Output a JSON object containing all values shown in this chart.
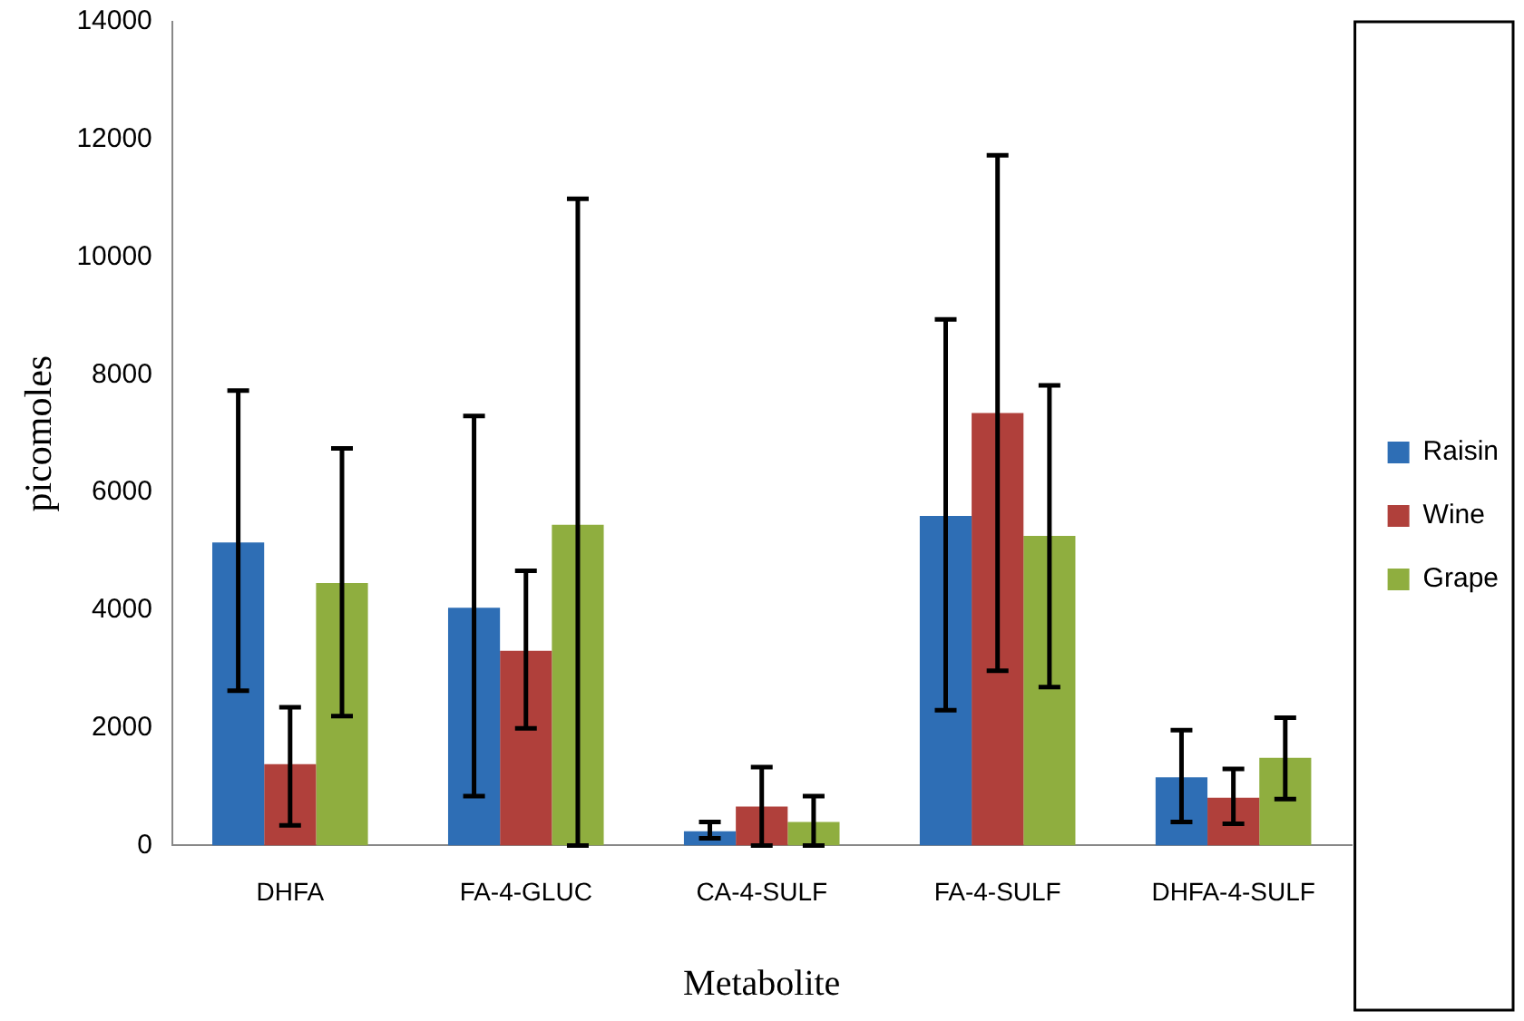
{
  "chart_data": {
    "type": "bar",
    "xlabel": "Metabolite",
    "ylabel": "picomoles",
    "categories": [
      "DHFA",
      "FA-4-GLUC",
      "CA-4-SULF",
      "FA-4-SULF",
      "DHFA-4-SULF"
    ],
    "series": [
      {
        "name": "Raisin",
        "color": "#2e6eb5",
        "values": [
          5150,
          4040,
          240,
          5600,
          1160
        ],
        "errors": [
          [
            2630,
            7730
          ],
          [
            840,
            7300
          ],
          [
            120,
            400
          ],
          [
            2300,
            8940
          ],
          [
            400,
            1960
          ]
        ]
      },
      {
        "name": "Wine",
        "color": "#b0403b",
        "values": [
          1380,
          3310,
          660,
          7350,
          810
        ],
        "errors": [
          [
            340,
            2350
          ],
          [
            1990,
            4670
          ],
          [
            0,
            1330
          ],
          [
            2970,
            11730
          ],
          [
            370,
            1300
          ]
        ]
      },
      {
        "name": "Grape",
        "color": "#8fae3f",
        "values": [
          4460,
          5450,
          400,
          5260,
          1490
        ],
        "errors": [
          [
            2200,
            6750
          ],
          [
            0,
            10990
          ],
          [
            0,
            840
          ],
          [
            2690,
            7820
          ],
          [
            790,
            2170
          ]
        ]
      }
    ],
    "ylim": [
      0,
      14000
    ],
    "yticks": [
      0,
      2000,
      4000,
      6000,
      8000,
      10000,
      12000,
      14000
    ],
    "grid": false,
    "legend": "right"
  }
}
